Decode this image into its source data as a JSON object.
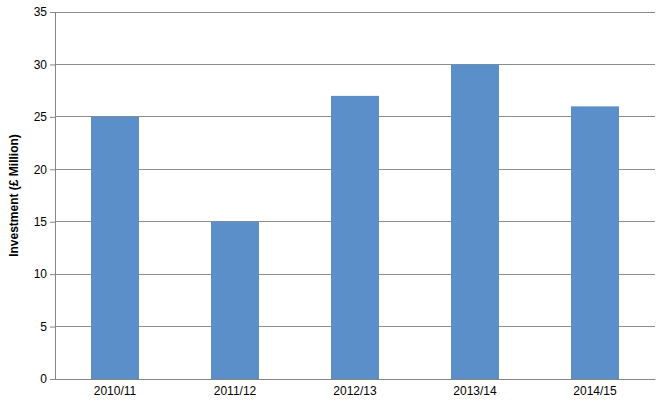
{
  "chart_data": {
    "type": "bar",
    "y_label": "Investment (£ Million)",
    "categories": [
      "2010/11",
      "2011/12",
      "2012/13",
      "2013/14",
      "2014/15"
    ],
    "values": [
      25,
      15,
      27,
      30,
      26
    ],
    "color": "#5b8fc9",
    "ylim": [
      0,
      35
    ],
    "yticks": [
      0,
      5,
      10,
      15,
      20,
      25,
      30,
      35
    ],
    "grid": true
  }
}
